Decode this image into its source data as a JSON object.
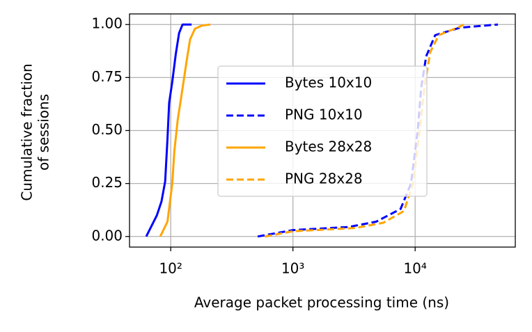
{
  "chart_data": {
    "type": "line",
    "xlabel": "Average packet processing time (ns)",
    "ylabel": [
      "Cumulative fraction",
      "of sessions"
    ],
    "xscale": "log",
    "grid": true,
    "legend": "center",
    "xlim": [
      46,
      66000
    ],
    "ylim": [
      -0.05,
      1.05
    ],
    "xticks": [
      {
        "value": 100,
        "label": "10²"
      },
      {
        "value": 1000,
        "label": "10³"
      },
      {
        "value": 10000,
        "label": "10⁴"
      }
    ],
    "yticks": [
      {
        "value": 0,
        "label": "0.00"
      },
      {
        "value": 0.25,
        "label": "0.25"
      },
      {
        "value": 0.5,
        "label": "0.50"
      },
      {
        "value": 0.75,
        "label": "0.75"
      },
      {
        "value": 1,
        "label": "1.00"
      }
    ],
    "series": [
      {
        "name": "Bytes 10x10",
        "color": "#0000ff",
        "linestyle": "solid",
        "x": [
          63,
          77,
          84,
          90,
          94,
          97,
          103,
          110,
          117,
          125,
          148
        ],
        "values": [
          0,
          0.1,
          0.165,
          0.26,
          0.46,
          0.63,
          0.73,
          0.86,
          0.96,
          1.0,
          1.0
        ]
      },
      {
        "name": "PNG 10x10",
        "color": "#0000ff",
        "linestyle": "dashed",
        "x": [
          515,
          1000,
          2860,
          4800,
          7600,
          9250,
          10500,
          11200,
          12300,
          14600,
          23200,
          47600
        ],
        "values": [
          0,
          0.03,
          0.045,
          0.07,
          0.13,
          0.25,
          0.5,
          0.7,
          0.85,
          0.95,
          0.985,
          1.0
        ]
      },
      {
        "name": "Bytes 28x28",
        "color": "#ffa500",
        "linestyle": "solid",
        "x": [
          82,
          94,
          103,
          107,
          114,
          125,
          135,
          144,
          158,
          180,
          211
        ],
        "values": [
          0,
          0.07,
          0.25,
          0.4,
          0.55,
          0.7,
          0.83,
          0.93,
          0.98,
          0.995,
          1.0
        ]
      },
      {
        "name": "PNG 28x28",
        "color": "#ffa500",
        "linestyle": "dashed",
        "x": [
          590,
          1000,
          3250,
          5500,
          8100,
          9600,
          10900,
          12000,
          13300,
          15600,
          23200,
          25000
        ],
        "values": [
          0,
          0.025,
          0.04,
          0.065,
          0.12,
          0.25,
          0.5,
          0.72,
          0.87,
          0.95,
          0.99,
          1.0
        ]
      }
    ]
  }
}
